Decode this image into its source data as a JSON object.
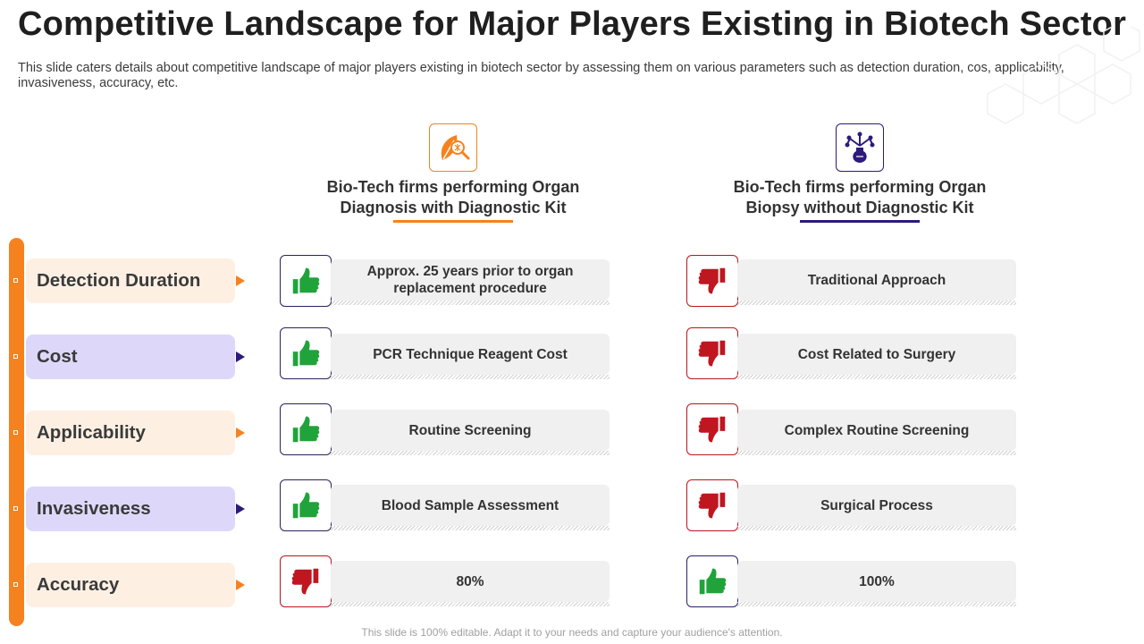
{
  "title": "Competitive Landscape for Major Players Existing in Biotech Sector",
  "subtitle": "This slide caters details about competitive landscape of major players existing in biotech sector by assessing them on various parameters such as detection duration, cos, applicability, invasiveness, accuracy, etc.",
  "columns": [
    {
      "heading": "Bio-Tech firms performing Organ Diagnosis with Diagnostic Kit",
      "icon": "diagnosis-kit-icon",
      "accent": "#f5821f"
    },
    {
      "heading": "Bio-Tech firms performing Organ Biopsy without Diagnostic Kit",
      "icon": "lab-flask-icon",
      "accent": "#2d1a7a"
    }
  ],
  "rows": [
    {
      "parameter": "Detection Duration",
      "col1": {
        "text": "Approx. 25 years prior to organ replacement procedure",
        "rating": "thumbs-up"
      },
      "col2": {
        "text": "Traditional Approach",
        "rating": "thumbs-down"
      }
    },
    {
      "parameter": "Cost",
      "col1": {
        "text": "PCR Technique Reagent Cost",
        "rating": "thumbs-up"
      },
      "col2": {
        "text": "Cost Related to Surgery",
        "rating": "thumbs-down"
      }
    },
    {
      "parameter": "Applicability",
      "col1": {
        "text": "Routine Screening",
        "rating": "thumbs-up"
      },
      "col2": {
        "text": "Complex Routine Screening",
        "rating": "thumbs-down"
      }
    },
    {
      "parameter": "Invasiveness",
      "col1": {
        "text": "Blood Sample Assessment",
        "rating": "thumbs-up"
      },
      "col2": {
        "text": "Surgical Process",
        "rating": "thumbs-down"
      }
    },
    {
      "parameter": "Accuracy",
      "col1": {
        "text": "80%",
        "rating": "thumbs-down"
      },
      "col2": {
        "text": "100%",
        "rating": "thumbs-up"
      }
    }
  ],
  "colors": {
    "orange": "#f5821f",
    "navy": "#2d1a7a",
    "thumb_up": "#21a33b",
    "thumb_down": "#c0161f",
    "param_light": "#fdf0e3",
    "param_purple": "#ddd8fa"
  },
  "footer": "This slide is 100% editable. Adapt it to your needs and capture your audience's attention."
}
